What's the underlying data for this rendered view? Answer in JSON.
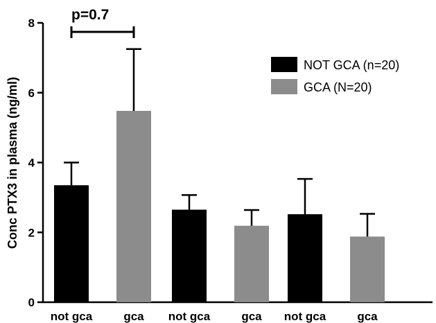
{
  "chart_data": {
    "type": "bar",
    "title": "",
    "xlabel": "",
    "ylabel": "Conc PTX3 in plasma (ng/ml)",
    "ylim": [
      0,
      8
    ],
    "yticks": [
      "0",
      "2",
      "4",
      "6",
      "8"
    ],
    "grid": false,
    "legend_position": "top-right",
    "groups": [
      {
        "bars": [
          {
            "label": "not gca",
            "series": "NOT GCA (n=20)",
            "value": 3.35,
            "error": 0.65
          },
          {
            "label": "gca",
            "series": "GCA (N=20)",
            "value": 5.48,
            "error": 1.77
          }
        ]
      },
      {
        "bars": [
          {
            "label": "not gca",
            "series": "NOT GCA (n=20)",
            "value": 2.65,
            "error": 0.42
          },
          {
            "label": "gca",
            "series": "GCA (N=20)",
            "value": 2.19,
            "error": 0.45
          }
        ]
      },
      {
        "bars": [
          {
            "label": "not gca",
            "series": "NOT GCA (n=20)",
            "value": 2.52,
            "error": 1.01
          },
          {
            "label": "gca",
            "series": "GCA (N=20)",
            "value": 1.88,
            "error": 0.65
          }
        ]
      }
    ],
    "series": [
      {
        "name": "NOT GCA (n=20)",
        "color": "#000000"
      },
      {
        "name": "GCA (N=20)",
        "color": "#8c8c8c"
      }
    ],
    "annotations": [
      {
        "text": "p=0.7",
        "group": 0
      }
    ]
  }
}
